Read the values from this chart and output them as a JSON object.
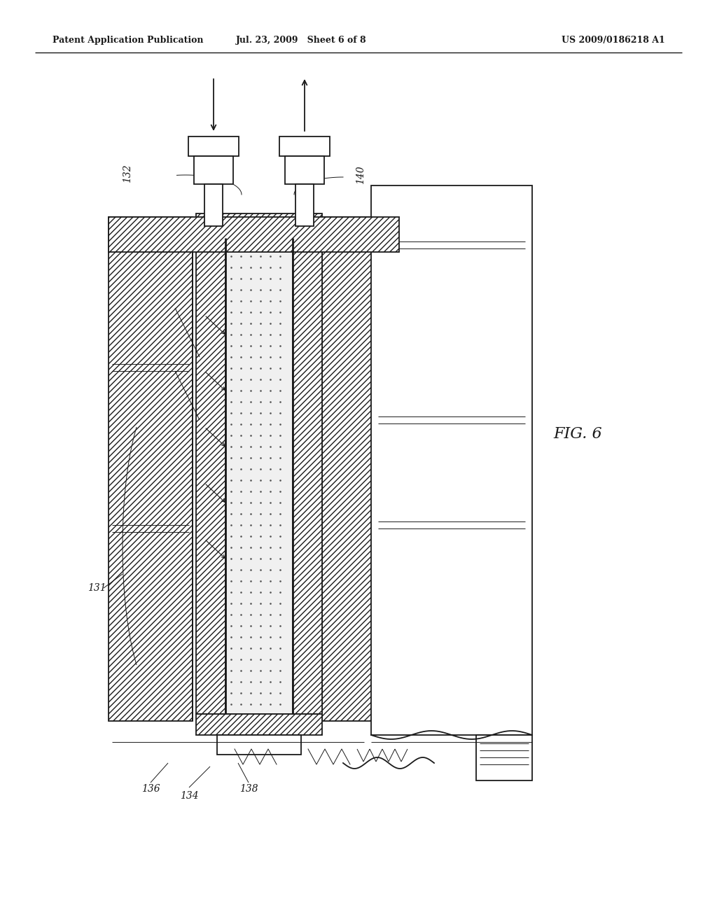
{
  "title_left": "Patent Application Publication",
  "title_mid": "Jul. 23, 2009   Sheet 6 of 8",
  "title_right": "US 2009/0186218 A1",
  "fig_label": "FIG. 6",
  "bg_color": "#ffffff",
  "line_color": "#1a1a1a",
  "lw_main": 1.3,
  "lw_thin": 0.7,
  "lw_thick": 2.0
}
